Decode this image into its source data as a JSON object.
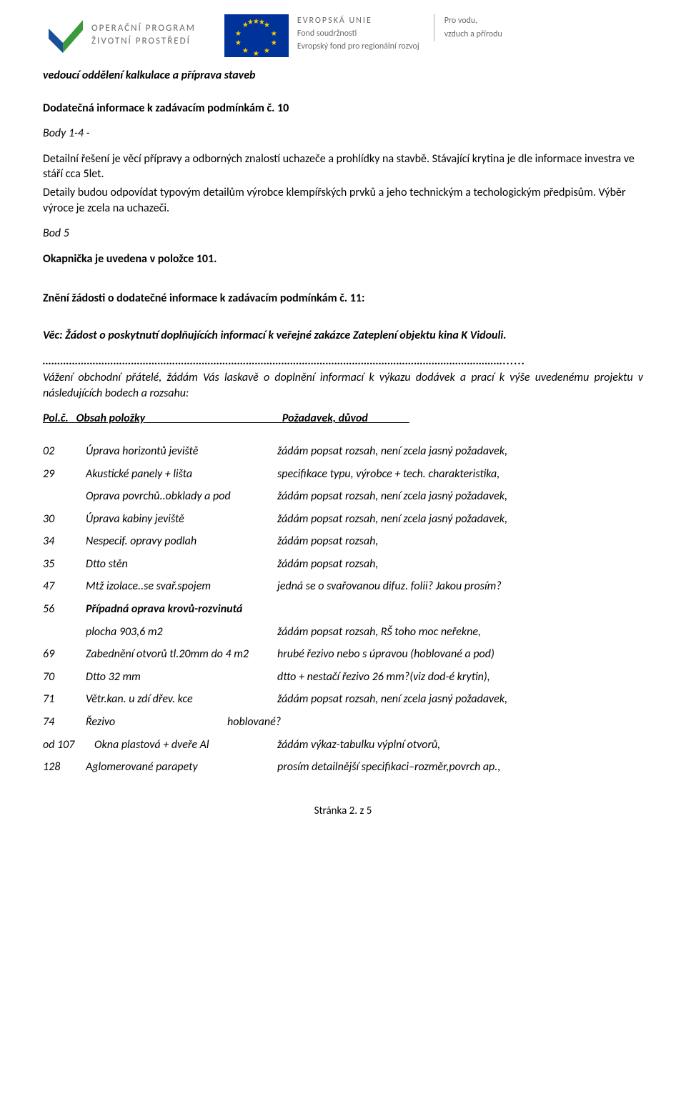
{
  "header": {
    "opzp_line1": "OPERAČNÍ PROGRAM",
    "opzp_line2": "ŽIVOTNÍ PROSTŘEDÍ",
    "eu_line1": "EVROPSKÁ UNIE",
    "eu_line2": "Fond soudržnosti",
    "eu_line3": "Evropský fond pro regionální rozvoj",
    "right_line1": "Pro vodu,",
    "right_line2": "vzduch a přírodu",
    "logo_green": "#3b9b3b",
    "logo_blue": "#1a4f9c",
    "eu_flag_bg": "#003399",
    "eu_star_color": "#ffcc00"
  },
  "subtitle": "vedoucí oddělení kalkulace a příprava staveb",
  "info_title": "Dodatečná informace k zadávacím podmínkám č. 10",
  "body14_label": "Body 1-4 -",
  "body14_text": "Detailní řešení je věcí přípravy  a odborných znalostí uchazeče a prohlídky na stavbě. Stávající krytina je dle informace investra ve stáří cca 5let.",
  "body14_text2": "Detaily budou odpovídat typovým detailům výrobce klempířských prvků a jeho technickým a techologickým předpisům. Výběr výroce je zcela na uchazeči.",
  "bod5_label": "Bod 5",
  "bod5_text": "Okapnička je uvedena v položce 101.",
  "zneni_title": "Znění žádosti o dodatečné informace k zadávacím podmínkám č. 11:",
  "vec_text": "Věc: Žádost o poskytnutí doplňujících informací k veřejné zakázce Zateplení objektu kina K Vidouli.",
  "dots": "…………………………………………………………………………………………………………………………………………......",
  "intro_text": "Vážení obchodní přátelé, žádám Vás laskavě o doplnění informací k výkazu dodávek a prací k výše uvedenému projektu v následujících bodech a rozsahu:",
  "col_polc": "Pol.č.",
  "col_obsah": "Obsah položky",
  "col_pozadavek": "Požadavek, důvod",
  "items": [
    {
      "num": "02",
      "desc": "Úprava horizontů jeviště",
      "req": "žádám popsat rozsah, není zcela jasný požadavek,"
    },
    {
      "num": "29",
      "desc": "Akustické panely + lišta",
      "req": "specifikace typu, výrobce + tech. charakteristika,"
    },
    {
      "num": "",
      "desc": "Oprava povrchů..obklady a pod",
      "req": "žádám popsat rozsah, není zcela jasný požadavek,"
    },
    {
      "num": "30",
      "desc": "Úprava kabiny jeviště",
      "req": "žádám popsat rozsah, není zcela jasný požadavek,"
    },
    {
      "num": "34",
      "desc": "Nespecif. opravy podlah",
      "req": "žádám popsat rozsah,"
    },
    {
      "num": "35",
      "desc": "Dtto stěn",
      "req": "žádám popsat rozsah,"
    },
    {
      "num": "47",
      "desc": "Mtž izolace..se svař.spojem",
      "req": "jedná se o svařovanou difuz. folii? Jakou prosím?"
    },
    {
      "num": "56",
      "desc": "Případná oprava krovů-rozvinutá",
      "req": ""
    },
    {
      "num": "",
      "desc": "plocha 903,6 m2",
      "req": "žádám popsat rozsah, RŠ toho moc neřekne,"
    },
    {
      "num": "69",
      "desc": "Zabednění otvorů tl.20mm do 4 m2",
      "req": "hrubé řezivo nebo s úpravou (hoblované a pod)"
    },
    {
      "num": "70",
      "desc": "Dtto 32 mm",
      "req": "dtto + nestačí řezivo 26 mm?(viz dod-é krytin),"
    },
    {
      "num": "71",
      "desc": "Větr.kan. u zdí dřev. kce",
      "req": "žádám popsat rozsah, není zcela jasný požadavek,"
    },
    {
      "num": "74",
      "desc": "Řezivo",
      "req": "hoblované?",
      "req_offset": true
    },
    {
      "num": "od 107",
      "desc": "Okna plastová + dveře Al",
      "req": "žádám výkaz-tabulku výplní otvorů,",
      "wide_num": true
    },
    {
      "num": "128",
      "desc": "Aglomerované parapety",
      "req": "prosím detailnější specifikaci–rozměr,povrch ap.,"
    }
  ],
  "footer": "Stránka 2. z 5"
}
